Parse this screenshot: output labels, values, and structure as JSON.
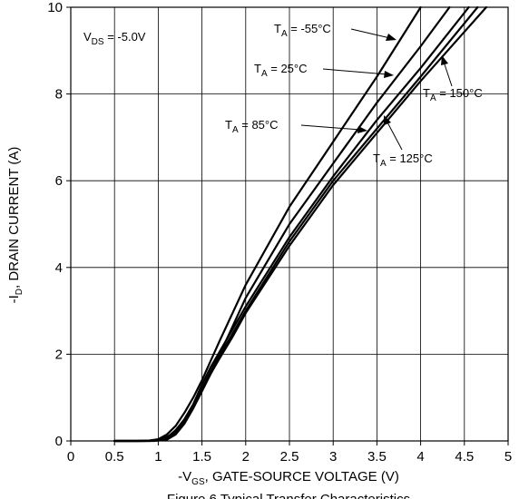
{
  "chart_data": {
    "type": "line",
    "title": "",
    "caption": "Figure 6 Typical Transfer Characteristics",
    "xlabel": {
      "prefix": "-V",
      "sub": "GS",
      "rest": ", GATE-SOURCE VOLTAGE (V)"
    },
    "ylabel": {
      "prefix": "-I",
      "sub": "D",
      "rest": ", DRAIN CURRENT (A)"
    },
    "xlim": [
      0,
      5
    ],
    "ylim": [
      0,
      10
    ],
    "xticks": [
      0,
      0.5,
      1,
      1.5,
      2,
      2.5,
      3,
      3.5,
      4,
      4.5,
      5
    ],
    "xtick_labels": [
      "0",
      "0.5",
      "1",
      "1.5",
      "2",
      "2.5",
      "3",
      "3.5",
      "4",
      "4.5",
      "5"
    ],
    "yticks": [
      0,
      2,
      4,
      6,
      8,
      10
    ],
    "ytick_labels": [
      "0",
      "2",
      "4",
      "6",
      "8",
      "10"
    ],
    "grid": true,
    "condition": {
      "prefix": "V",
      "sub": "DS",
      "rest": " = -5.0V"
    },
    "series": [
      {
        "name": "T_A = -55°C",
        "label": {
          "prefix": "T",
          "sub": "A",
          "rest": " = -55°C"
        },
        "x": [
          0.5,
          0.75,
          0.9,
          1.0,
          1.1,
          1.2,
          1.3,
          1.4,
          1.5,
          1.7,
          2.0,
          2.5,
          3.0,
          3.5,
          4.0
        ],
        "y": [
          0,
          0,
          0.01,
          0.04,
          0.15,
          0.35,
          0.65,
          1.0,
          1.4,
          2.3,
          3.6,
          5.4,
          6.9,
          8.4,
          10.0
        ]
      },
      {
        "name": "T_A = 25°C",
        "label": {
          "prefix": "T",
          "sub": "A",
          "rest": " = 25°C"
        },
        "x": [
          0.5,
          0.8,
          0.95,
          1.05,
          1.15,
          1.25,
          1.35,
          1.45,
          1.55,
          1.75,
          2.0,
          2.5,
          3.0,
          3.5,
          4.0,
          4.33
        ],
        "y": [
          0,
          0,
          0.01,
          0.05,
          0.15,
          0.35,
          0.65,
          1.0,
          1.4,
          2.2,
          3.3,
          5.0,
          6.4,
          7.8,
          9.1,
          10.0
        ]
      },
      {
        "name": "T_A = 85°C",
        "label": {
          "prefix": "T",
          "sub": "A",
          "rest": " = 85°C"
        },
        "x": [
          0.5,
          0.85,
          1.0,
          1.1,
          1.2,
          1.3,
          1.4,
          1.5,
          1.6,
          1.8,
          2.0,
          2.5,
          3.0,
          3.5,
          4.0,
          4.55
        ],
        "y": [
          0,
          0,
          0.02,
          0.08,
          0.25,
          0.5,
          0.85,
          1.3,
          1.7,
          2.4,
          3.1,
          4.7,
          6.1,
          7.4,
          8.6,
          10.0
        ]
      },
      {
        "name": "T_A = 125°C",
        "label": {
          "prefix": "T",
          "sub": "A",
          "rest": " = 125°C"
        },
        "x": [
          0.5,
          0.9,
          1.05,
          1.15,
          1.25,
          1.35,
          1.45,
          1.55,
          1.65,
          1.8,
          2.0,
          2.5,
          3.0,
          3.5,
          4.0,
          4.65
        ],
        "y": [
          0,
          0,
          0.02,
          0.1,
          0.3,
          0.6,
          0.95,
          1.35,
          1.75,
          2.3,
          3.0,
          4.6,
          6.0,
          7.2,
          8.4,
          10.0
        ]
      },
      {
        "name": "T_A = 150°C",
        "label": {
          "prefix": "T",
          "sub": "A",
          "rest": " = 150°C"
        },
        "x": [
          0.5,
          0.95,
          1.1,
          1.2,
          1.3,
          1.4,
          1.5,
          1.6,
          1.7,
          1.85,
          2.0,
          2.5,
          3.0,
          3.5,
          4.0,
          4.75
        ],
        "y": [
          0,
          0,
          0.03,
          0.15,
          0.4,
          0.75,
          1.15,
          1.55,
          1.9,
          2.4,
          2.95,
          4.5,
          5.9,
          7.1,
          8.3,
          10.0
        ]
      }
    ]
  }
}
